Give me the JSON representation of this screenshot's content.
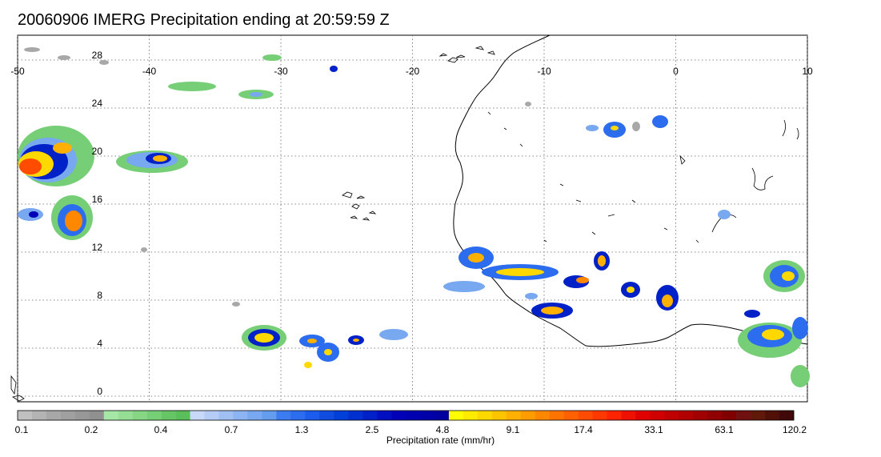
{
  "title": "20060906 IMERG Precipitation ending at 20:59:59 Z",
  "map": {
    "lon_range": [
      -50,
      10
    ],
    "lat_range": [
      -0.5,
      30
    ],
    "lon_ticks": [
      "-50",
      "-40",
      "-30",
      "-20",
      "-10",
      "0",
      "10"
    ],
    "lat_ticks": [
      "28",
      "24",
      "20",
      "16",
      "12",
      "8",
      "4",
      "0"
    ],
    "grid": "dotted",
    "coastline_color": "#000000",
    "ocean_color": "#ffffff",
    "land_color": "#ffffff"
  },
  "colorbar": {
    "title": "Precipitation rate (mm/hr)",
    "tick_labels": [
      "0.1",
      "0.2",
      "0.4",
      "0.7",
      "1.3",
      "2.5",
      "4.8",
      "9.1",
      "17.4",
      "33.1",
      "63.1",
      "120.2"
    ],
    "colors": [
      "#c0c0c0",
      "#b4b4b4",
      "#a8a8a8",
      "#a0a0a0",
      "#989898",
      "#909090",
      "#a6e6a6",
      "#96de96",
      "#86d686",
      "#76ce76",
      "#66c666",
      "#5abe5a",
      "#c8d8f8",
      "#b4ccf6",
      "#a0c0f4",
      "#8cb4f2",
      "#78a8f0",
      "#649cee",
      "#3c7cf0",
      "#2c6cee",
      "#1c5cec",
      "#104ce0",
      "#0040d8",
      "#0030d0",
      "#0020c8",
      "#0010c0",
      "#0000b8",
      "#0000b0",
      "#0000a8",
      "#0000a0",
      "#ffff00",
      "#ffec00",
      "#ffd800",
      "#ffc400",
      "#ffb000",
      "#ff9c00",
      "#ff8800",
      "#ff7400",
      "#ff6000",
      "#ff4c00",
      "#ff3800",
      "#ff2400",
      "#f01000",
      "#e00000",
      "#d00000",
      "#c00000",
      "#b00000",
      "#a00000",
      "#900000",
      "#800000",
      "#701010",
      "#601808",
      "#501008",
      "#400808"
    ]
  }
}
